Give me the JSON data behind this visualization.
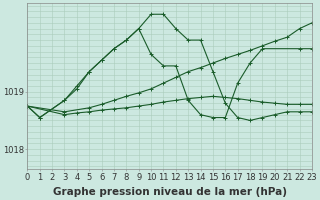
{
  "background_color": "#cce8e0",
  "grid_color_major": "#aaccbb",
  "grid_color_minor": "#bbddcc",
  "line_color": "#1a5c2a",
  "xlabel": "Graphe pression niveau de la mer (hPa)",
  "xlabel_fontsize": 7.5,
  "tick_fontsize": 6,
  "ytick_labels": [
    "1018",
    "1019"
  ],
  "ytick_values": [
    1018.0,
    1019.0
  ],
  "ylim": [
    1017.65,
    1020.55
  ],
  "xlim": [
    0,
    23
  ],
  "series": [
    {
      "x": [
        0,
        1,
        3,
        4,
        5,
        6,
        7,
        8,
        9,
        10,
        11,
        12,
        13,
        14,
        15,
        16,
        17,
        18,
        19,
        22,
        23
      ],
      "y": [
        1018.75,
        1018.55,
        1018.85,
        1019.05,
        1019.35,
        1019.55,
        1019.75,
        1019.9,
        1020.1,
        1019.65,
        1019.45,
        1019.45,
        1018.85,
        1018.6,
        1018.55,
        1018.55,
        1019.15,
        1019.5,
        1019.75,
        1019.75,
        1019.75
      ]
    },
    {
      "x": [
        0,
        1,
        3,
        4,
        5,
        6,
        7,
        8,
        9,
        10,
        11,
        12,
        13,
        14,
        15,
        16,
        17,
        18,
        19,
        20,
        21,
        22,
        23
      ],
      "y": [
        1018.75,
        1018.55,
        1018.85,
        1019.1,
        1019.35,
        1019.55,
        1019.75,
        1019.9,
        1020.1,
        1020.35,
        1020.35,
        1020.1,
        1019.9,
        1019.9,
        1019.35,
        1018.8,
        1018.55,
        1018.5,
        1018.55,
        1018.6,
        1018.65,
        1018.65,
        1018.65
      ]
    },
    {
      "x": [
        0,
        3,
        5,
        6,
        7,
        8,
        9,
        10,
        11,
        12,
        13,
        14,
        15,
        16,
        17,
        18,
        19,
        20,
        21,
        22,
        23
      ],
      "y": [
        1018.75,
        1018.65,
        1018.72,
        1018.78,
        1018.85,
        1018.92,
        1018.98,
        1019.05,
        1019.15,
        1019.25,
        1019.35,
        1019.42,
        1019.5,
        1019.58,
        1019.65,
        1019.72,
        1019.8,
        1019.88,
        1019.95,
        1020.1,
        1020.2
      ]
    },
    {
      "x": [
        0,
        3,
        4,
        5,
        6,
        7,
        8,
        9,
        10,
        11,
        12,
        13,
        14,
        15,
        16,
        17,
        18,
        19,
        20,
        21,
        22,
        23
      ],
      "y": [
        1018.75,
        1018.6,
        1018.63,
        1018.65,
        1018.68,
        1018.7,
        1018.72,
        1018.75,
        1018.78,
        1018.82,
        1018.85,
        1018.88,
        1018.9,
        1018.92,
        1018.9,
        1018.88,
        1018.85,
        1018.82,
        1018.8,
        1018.78,
        1018.78,
        1018.78
      ]
    }
  ]
}
